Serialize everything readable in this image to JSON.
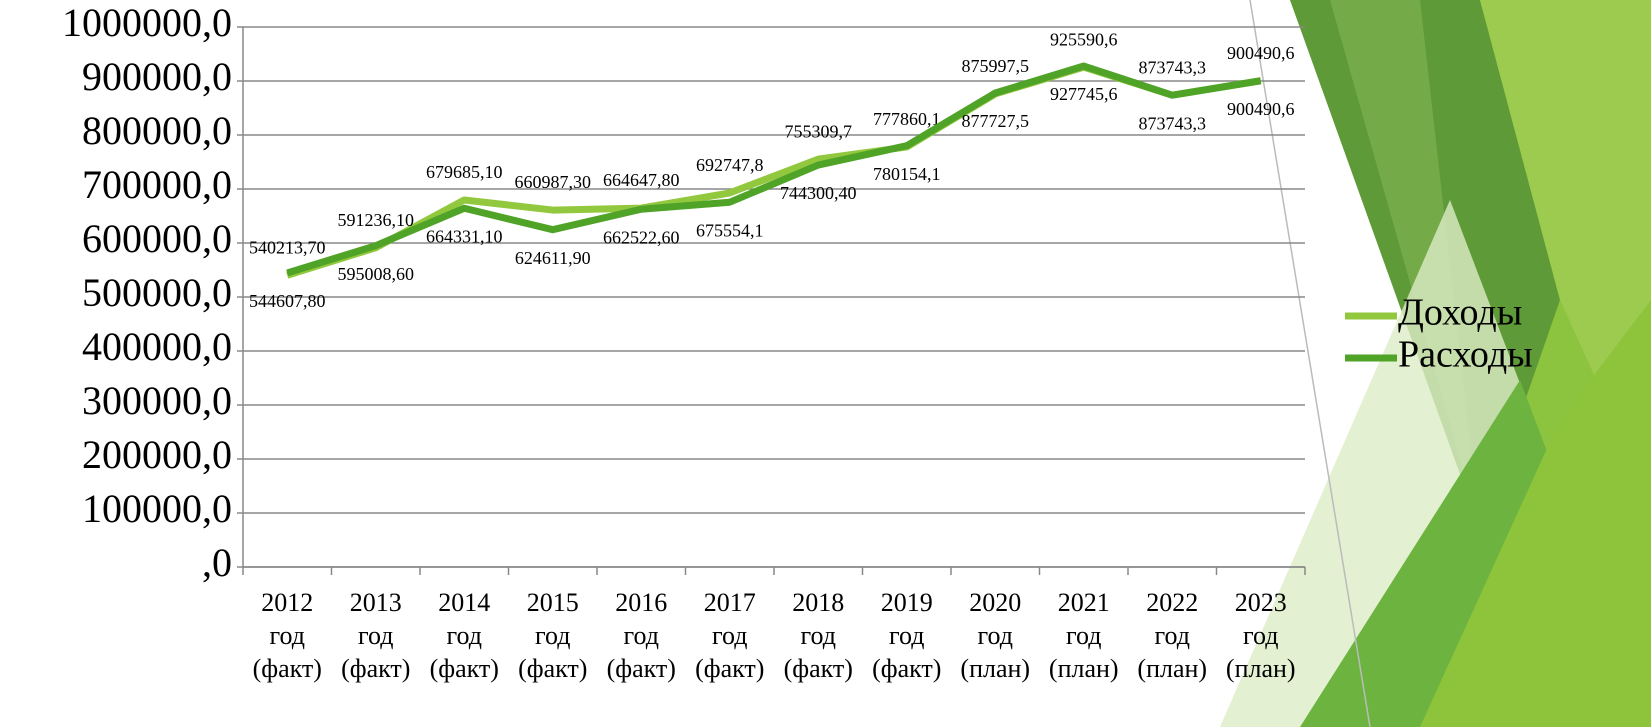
{
  "chart_data": {
    "type": "line",
    "categories": [
      "2012\nгод\n(факт)",
      "2013\nгод\n(факт)",
      "2014\nгод\n(факт)",
      "2015\nгод\n(факт)",
      "2016\nгод\n(факт)",
      "2017\nгод\n(факт)",
      "2018\nгод\n(факт)",
      "2019\nгод\n(факт)",
      "2020\nгод\n(план)",
      "2021\nгод\n(план)",
      "2022\nгод\n(план)",
      "2023\nгод\n(план)"
    ],
    "series": [
      {
        "name": "Доходы",
        "color": "#92c83e",
        "values": [
          540213.7,
          591236.1,
          679685.1,
          660987.3,
          664647.8,
          692747.8,
          755309.7,
          777860.1,
          875997.5,
          925590.6,
          873743.3,
          900490.6
        ],
        "value_labels": [
          "540213,70",
          "591236,10",
          "679685,10",
          "660987,30",
          "664647,80",
          "692747,8",
          "755309,7",
          "777860,1",
          "875997,5",
          "925590,6",
          "873743,3",
          "900490,6"
        ]
      },
      {
        "name": "Расходы",
        "color": "#4fa327",
        "values": [
          544607.8,
          595008.6,
          664331.1,
          624611.9,
          662522.6,
          675554.1,
          744300.4,
          780154.1,
          877727.5,
          927745.6,
          873743.3,
          900490.6
        ],
        "value_labels": [
          "544607,80",
          "595008,60",
          "664331,10",
          "624611,90",
          "662522,60",
          "675554,1",
          "744300,40",
          "780154,1",
          "877727,5",
          "927745,6",
          "873743,3",
          "900490,6"
        ]
      }
    ],
    "ylim": [
      0,
      1000000
    ],
    "yticks": [
      {
        "value": 0,
        "label": ",0"
      },
      {
        "value": 100000,
        "label": "100000,0"
      },
      {
        "value": 200000,
        "label": "200000,0"
      },
      {
        "value": 300000,
        "label": "300000,0"
      },
      {
        "value": 400000,
        "label": "400000,0"
      },
      {
        "value": 500000,
        "label": "500000,0"
      },
      {
        "value": 600000,
        "label": "600000,0"
      },
      {
        "value": 700000,
        "label": "700000,0"
      },
      {
        "value": 800000,
        "label": "800000,0"
      },
      {
        "value": 900000,
        "label": "900000,0"
      },
      {
        "value": 1000000,
        "label": "1000000,0"
      }
    ],
    "grid": true,
    "legend": "right"
  }
}
